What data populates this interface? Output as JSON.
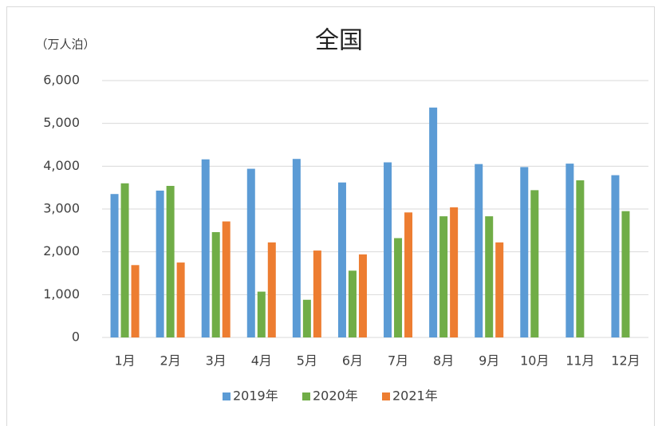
{
  "chart_data": {
    "type": "bar",
    "title": "全国",
    "y_label": "（万人泊）",
    "categories": [
      "1月",
      "2月",
      "3月",
      "4月",
      "5月",
      "6月",
      "7月",
      "8月",
      "9月",
      "10月",
      "11月",
      "12月"
    ],
    "series": [
      {
        "name": "2019年",
        "color": "#5b9bd5",
        "values": [
          3350,
          3430,
          4160,
          3940,
          4170,
          3620,
          4090,
          5370,
          4050,
          3980,
          4060,
          3790
        ]
      },
      {
        "name": "2020年",
        "color": "#70ad47",
        "values": [
          3600,
          3540,
          2460,
          1070,
          880,
          1560,
          2320,
          2830,
          2830,
          3440,
          3670,
          2950
        ]
      },
      {
        "name": "2021年",
        "color": "#ed7d31",
        "values": [
          1690,
          1750,
          2710,
          2220,
          2030,
          1940,
          2920,
          3040,
          2220,
          null,
          null,
          null
        ]
      }
    ],
    "ylim": [
      0,
      6000
    ],
    "yticks": [
      0,
      {
        "value": 1000,
        "label": "1,000"
      },
      {
        "value": 2000,
        "label": "2,000"
      },
      {
        "value": 3000,
        "label": "3,000"
      },
      {
        "value": 4000,
        "label": "4,000"
      },
      {
        "value": 5000,
        "label": "5,000"
      },
      {
        "value": 6000,
        "label": "6,000"
      }
    ],
    "grid": true,
    "legend": "bottom"
  }
}
